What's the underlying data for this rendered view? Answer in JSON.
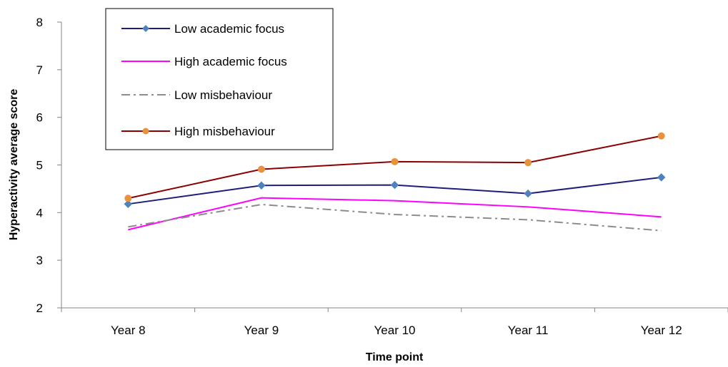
{
  "chart_data": {
    "type": "line",
    "title": "",
    "xlabel": "Time point",
    "ylabel": "Hyperactivity average score",
    "categories": [
      "Year 8",
      "Year 9",
      "Year 10",
      "Year 11",
      "Year 12"
    ],
    "ylim": [
      2,
      8
    ],
    "yticks": [
      "2",
      "3",
      "4",
      "5",
      "6",
      "7",
      "8"
    ],
    "grid": false,
    "legend": "top-left",
    "series": [
      {
        "name": "Low academic focus",
        "values": [
          4.18,
          4.57,
          4.58,
          4.4,
          4.74
        ],
        "color": "#1f1f7a",
        "marker": "diamond",
        "marker_color": "#4f81bd",
        "dash": "solid"
      },
      {
        "name": "High academic focus",
        "values": [
          3.64,
          4.31,
          4.25,
          4.12,
          3.91
        ],
        "color": "#ff00ff",
        "marker": "none",
        "dash": "solid"
      },
      {
        "name": "Low misbehaviour",
        "values": [
          3.7,
          4.17,
          3.96,
          3.85,
          3.62
        ],
        "color": "#8c8c8c",
        "marker": "none",
        "dash": "dashdot"
      },
      {
        "name": "High misbehaviour",
        "values": [
          4.3,
          4.91,
          5.07,
          5.05,
          5.61
        ],
        "color": "#8b0000",
        "marker": "circle",
        "marker_color": "#e8923e",
        "dash": "solid"
      }
    ]
  }
}
